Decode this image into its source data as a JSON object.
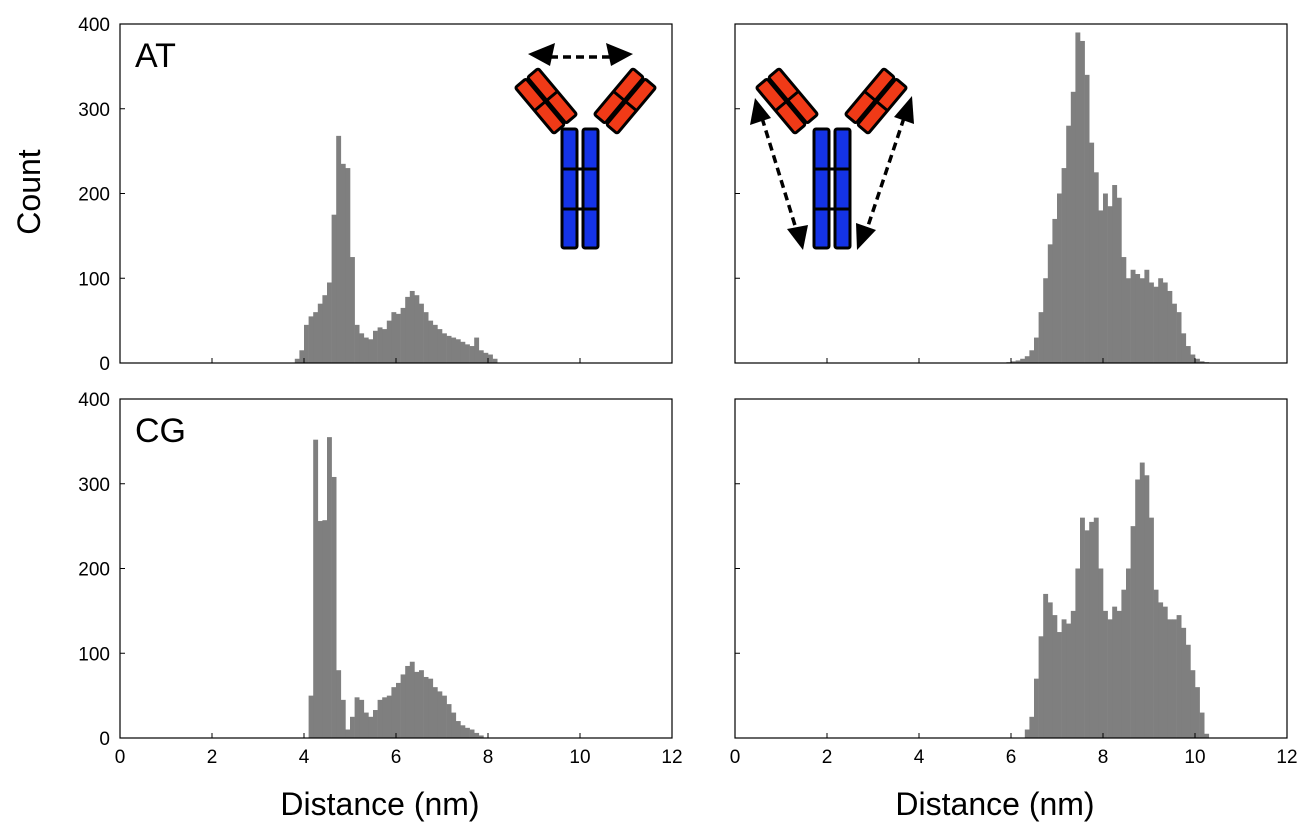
{
  "figure": {
    "ylabel": "Count",
    "xlabel": "Distance (nm)"
  },
  "colors": {
    "bar": "#7f7f7f",
    "fab_fill": "#f03a17",
    "fc_fill": "#1433e6",
    "outline": "#000000"
  },
  "chart_data": [
    {
      "type": "bar",
      "panel": "top-left",
      "label": "AT",
      "title": "",
      "xlabel": "",
      "ylabel": "Count",
      "xlim": [
        0,
        12
      ],
      "ylim": [
        0,
        400
      ],
      "grid": false,
      "bin_width": 0.1,
      "x": [
        3.8,
        3.9,
        4.0,
        4.1,
        4.2,
        4.3,
        4.4,
        4.5,
        4.6,
        4.7,
        4.8,
        4.9,
        5.0,
        5.1,
        5.2,
        5.3,
        5.4,
        5.5,
        5.6,
        5.7,
        5.8,
        5.9,
        6.0,
        6.1,
        6.2,
        6.3,
        6.4,
        6.5,
        6.6,
        6.7,
        6.8,
        6.9,
        7.0,
        7.1,
        7.2,
        7.3,
        7.4,
        7.5,
        7.6,
        7.7,
        7.8,
        7.9,
        8.0,
        8.1
      ],
      "values": [
        5,
        15,
        45,
        55,
        60,
        70,
        80,
        95,
        175,
        268,
        235,
        230,
        125,
        45,
        35,
        30,
        28,
        38,
        42,
        40,
        50,
        60,
        58,
        65,
        78,
        85,
        80,
        70,
        60,
        50,
        45,
        40,
        35,
        32,
        30,
        28,
        25,
        22,
        20,
        30,
        15,
        12,
        10,
        5
      ]
    },
    {
      "type": "bar",
      "panel": "top-right",
      "label": "",
      "title": "",
      "xlabel": "",
      "ylabel": "",
      "xlim": [
        0,
        12
      ],
      "ylim": [
        0,
        400
      ],
      "grid": false,
      "bin_width": 0.1,
      "x": [
        5.9,
        6.0,
        6.1,
        6.2,
        6.3,
        6.4,
        6.5,
        6.6,
        6.7,
        6.8,
        6.9,
        7.0,
        7.1,
        7.2,
        7.3,
        7.4,
        7.5,
        7.6,
        7.7,
        7.8,
        7.9,
        8.0,
        8.1,
        8.2,
        8.3,
        8.4,
        8.5,
        8.6,
        8.7,
        8.8,
        8.9,
        9.0,
        9.1,
        9.2,
        9.3,
        9.4,
        9.5,
        9.6,
        9.7,
        9.8,
        9.9,
        10.0,
        10.1,
        10.2
      ],
      "values": [
        1,
        2,
        3,
        5,
        8,
        15,
        30,
        60,
        100,
        140,
        170,
        200,
        230,
        280,
        320,
        390,
        380,
        340,
        260,
        225,
        180,
        200,
        185,
        210,
        195,
        125,
        100,
        110,
        105,
        100,
        110,
        95,
        90,
        100,
        95,
        85,
        70,
        60,
        35,
        20,
        10,
        5,
        2,
        1
      ]
    },
    {
      "type": "bar",
      "panel": "bottom-left",
      "label": "CG",
      "title": "",
      "xlabel": "Distance (nm)",
      "ylabel": "",
      "xlim": [
        0,
        12
      ],
      "ylim": [
        0,
        400
      ],
      "grid": false,
      "bin_width": 0.1,
      "x": [
        4.1,
        4.2,
        4.3,
        4.4,
        4.5,
        4.6,
        4.7,
        4.8,
        4.9,
        5.0,
        5.1,
        5.2,
        5.3,
        5.4,
        5.5,
        5.6,
        5.7,
        5.8,
        5.9,
        6.0,
        6.1,
        6.2,
        6.3,
        6.4,
        6.5,
        6.6,
        6.7,
        6.8,
        6.9,
        7.0,
        7.1,
        7.2,
        7.3,
        7.4,
        7.5,
        7.6,
        7.7,
        7.8
      ],
      "values": [
        50,
        352,
        256,
        257,
        355,
        308,
        80,
        45,
        10,
        25,
        48,
        45,
        30,
        25,
        33,
        45,
        48,
        50,
        60,
        65,
        75,
        85,
        90,
        78,
        80,
        72,
        70,
        60,
        55,
        50,
        40,
        30,
        20,
        15,
        12,
        10,
        6,
        3
      ]
    },
    {
      "type": "bar",
      "panel": "bottom-right",
      "label": "",
      "title": "",
      "xlabel": "Distance (nm)",
      "ylabel": "",
      "xlim": [
        0,
        12
      ],
      "ylim": [
        0,
        400
      ],
      "grid": false,
      "bin_width": 0.1,
      "x": [
        6.3,
        6.4,
        6.5,
        6.6,
        6.7,
        6.8,
        6.9,
        7.0,
        7.1,
        7.2,
        7.3,
        7.4,
        7.5,
        7.6,
        7.7,
        7.8,
        7.9,
        8.0,
        8.1,
        8.2,
        8.3,
        8.4,
        8.5,
        8.6,
        8.7,
        8.8,
        8.9,
        9.0,
        9.1,
        9.2,
        9.3,
        9.4,
        9.5,
        9.6,
        9.7,
        9.8,
        9.9,
        10.0,
        10.1,
        10.2
      ],
      "values": [
        10,
        25,
        70,
        120,
        170,
        160,
        145,
        125,
        140,
        135,
        150,
        200,
        260,
        245,
        255,
        260,
        200,
        150,
        140,
        155,
        150,
        175,
        200,
        250,
        305,
        325,
        310,
        260,
        175,
        160,
        155,
        140,
        140,
        145,
        130,
        110,
        80,
        60,
        30,
        5
      ]
    }
  ]
}
